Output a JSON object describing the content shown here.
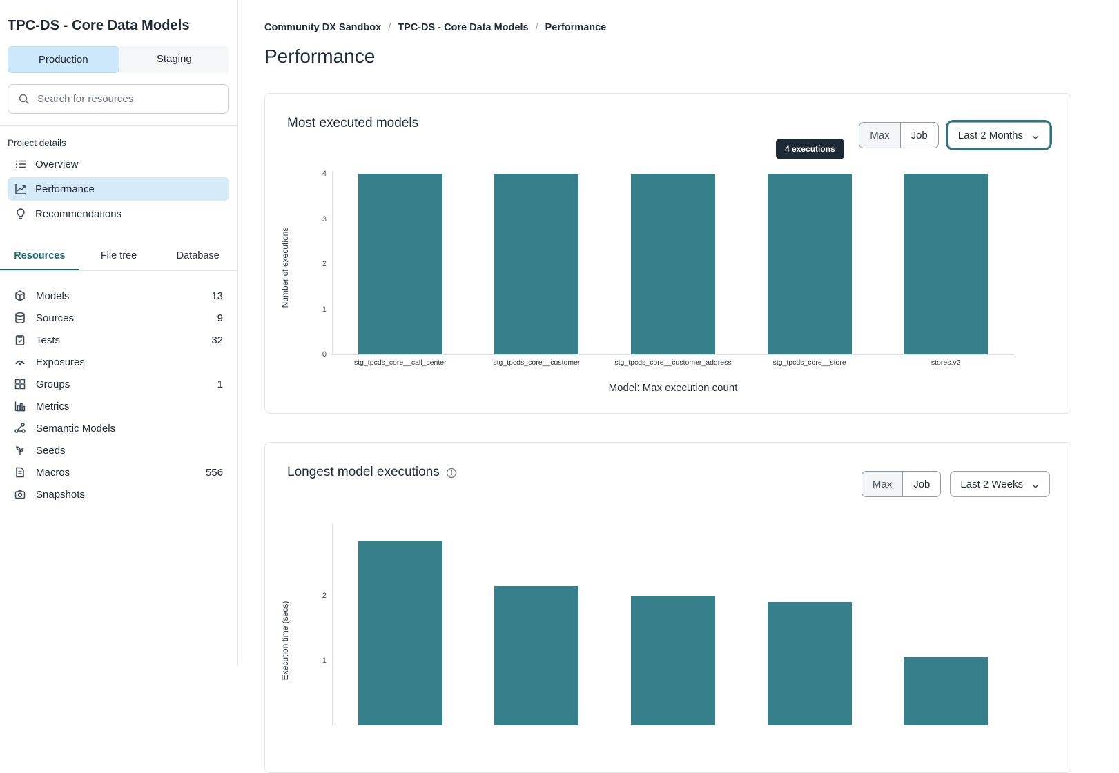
{
  "sidebar": {
    "title": "TPC-DS - Core Data Models",
    "env_tabs": [
      {
        "label": "Production",
        "active": true
      },
      {
        "label": "Staging",
        "active": false
      }
    ],
    "search": {
      "placeholder": "Search for resources"
    },
    "section_label": "Project details",
    "nav": [
      {
        "label": "Overview",
        "icon": "list-icon",
        "active": false
      },
      {
        "label": "Performance",
        "icon": "line-chart-icon",
        "active": true
      },
      {
        "label": "Recommendations",
        "icon": "lightbulb-icon",
        "active": false
      }
    ],
    "tabs": [
      {
        "label": "Resources",
        "active": true
      },
      {
        "label": "File tree",
        "active": false
      },
      {
        "label": "Database",
        "active": false
      }
    ],
    "resources": [
      {
        "label": "Models",
        "count": "13",
        "icon": "cube-icon"
      },
      {
        "label": "Sources",
        "count": "9",
        "icon": "database-icon"
      },
      {
        "label": "Tests",
        "count": "32",
        "icon": "clipboard-icon"
      },
      {
        "label": "Exposures",
        "count": "",
        "icon": "gauge-icon"
      },
      {
        "label": "Groups",
        "count": "1",
        "icon": "grid-icon"
      },
      {
        "label": "Metrics",
        "count": "",
        "icon": "bar-chart-icon"
      },
      {
        "label": "Semantic Models",
        "count": "",
        "icon": "share-graph-icon"
      },
      {
        "label": "Seeds",
        "count": "",
        "icon": "seed-icon"
      },
      {
        "label": "Macros",
        "count": "556",
        "icon": "file-icon"
      },
      {
        "label": "Snapshots",
        "count": "",
        "icon": "camera-icon"
      }
    ]
  },
  "breadcrumb": [
    "Community DX Sandbox",
    "TPC-DS - Core Data Models",
    "Performance"
  ],
  "breadcrumb_separator": "/",
  "page_title": "Performance",
  "colors": {
    "bar": "#35808A",
    "accent_teal": "#2E747C",
    "active_nav_bg": "#D6EBFA",
    "tooltip_bg": "#1E2936"
  },
  "chart_data": [
    {
      "type": "bar",
      "title": "Most executed models",
      "categories": [
        "stg_tpcds_core__call_center",
        "stg_tpcds_core__customer",
        "stg_tpcds_core__customer_address",
        "stg_tpcds_core__store",
        "stores.v2"
      ],
      "values": [
        4,
        4,
        4,
        4,
        4
      ],
      "xlabel": "Model: Max execution count",
      "ylabel": "Number of executions",
      "ylim": [
        0,
        4
      ],
      "yticks": [
        0,
        1,
        2,
        3,
        4
      ],
      "grid": false,
      "tooltip": {
        "text": "4 executions",
        "bar_index": 3
      },
      "controls": {
        "toggle": [
          "Max",
          "Job"
        ],
        "active_toggle": "Job",
        "dropdown": "Last 2 Months",
        "dropdown_focused": true
      }
    },
    {
      "type": "bar",
      "title": "Longest model executions",
      "categories": [
        "",
        "",
        "",
        "",
        ""
      ],
      "values": [
        2.85,
        2.15,
        2.0,
        1.9,
        1.05
      ],
      "xlabel": "",
      "ylabel": "Execution time (secs)",
      "ylim": [
        0,
        3
      ],
      "yticks": [
        1,
        2
      ],
      "grid": false,
      "controls": {
        "toggle": [
          "Max",
          "Job"
        ],
        "active_toggle": "Job",
        "dropdown": "Last 2 Weeks",
        "dropdown_focused": false
      }
    }
  ]
}
